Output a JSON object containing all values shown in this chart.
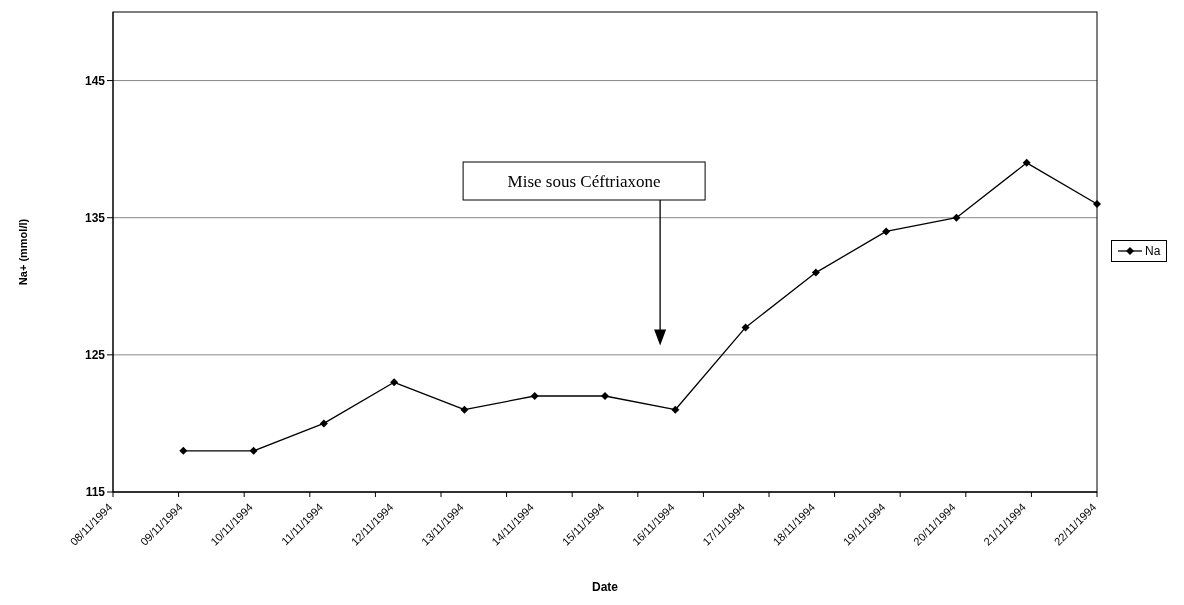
{
  "chart_data": {
    "type": "line",
    "xlabel": "Date",
    "ylabel": "Na+ (mmol/l)",
    "categories": [
      "08/11/1994",
      "09/11/1994",
      "10/11/1994",
      "11/11/1994",
      "12/11/1994",
      "13/11/1994",
      "14/11/1994",
      "15/11/1994",
      "16/11/1994",
      "17/11/1994",
      "18/11/1994",
      "19/11/1994",
      "20/11/1994",
      "21/11/1994",
      "22/11/1994"
    ],
    "series": [
      {
        "name": "Na",
        "color": "#000000",
        "values": [
          null,
          118,
          118,
          120,
          123,
          121,
          122,
          122,
          121,
          127,
          131,
          134,
          135,
          139,
          136
        ]
      }
    ],
    "ylim": [
      115,
      150
    ],
    "yticks": [
      115,
      125,
      135,
      145
    ],
    "grid": "y",
    "legend": "right",
    "marker": "diamond",
    "line_style": "solid",
    "annotations": [
      "Mise sous Céftriaxone"
    ]
  }
}
